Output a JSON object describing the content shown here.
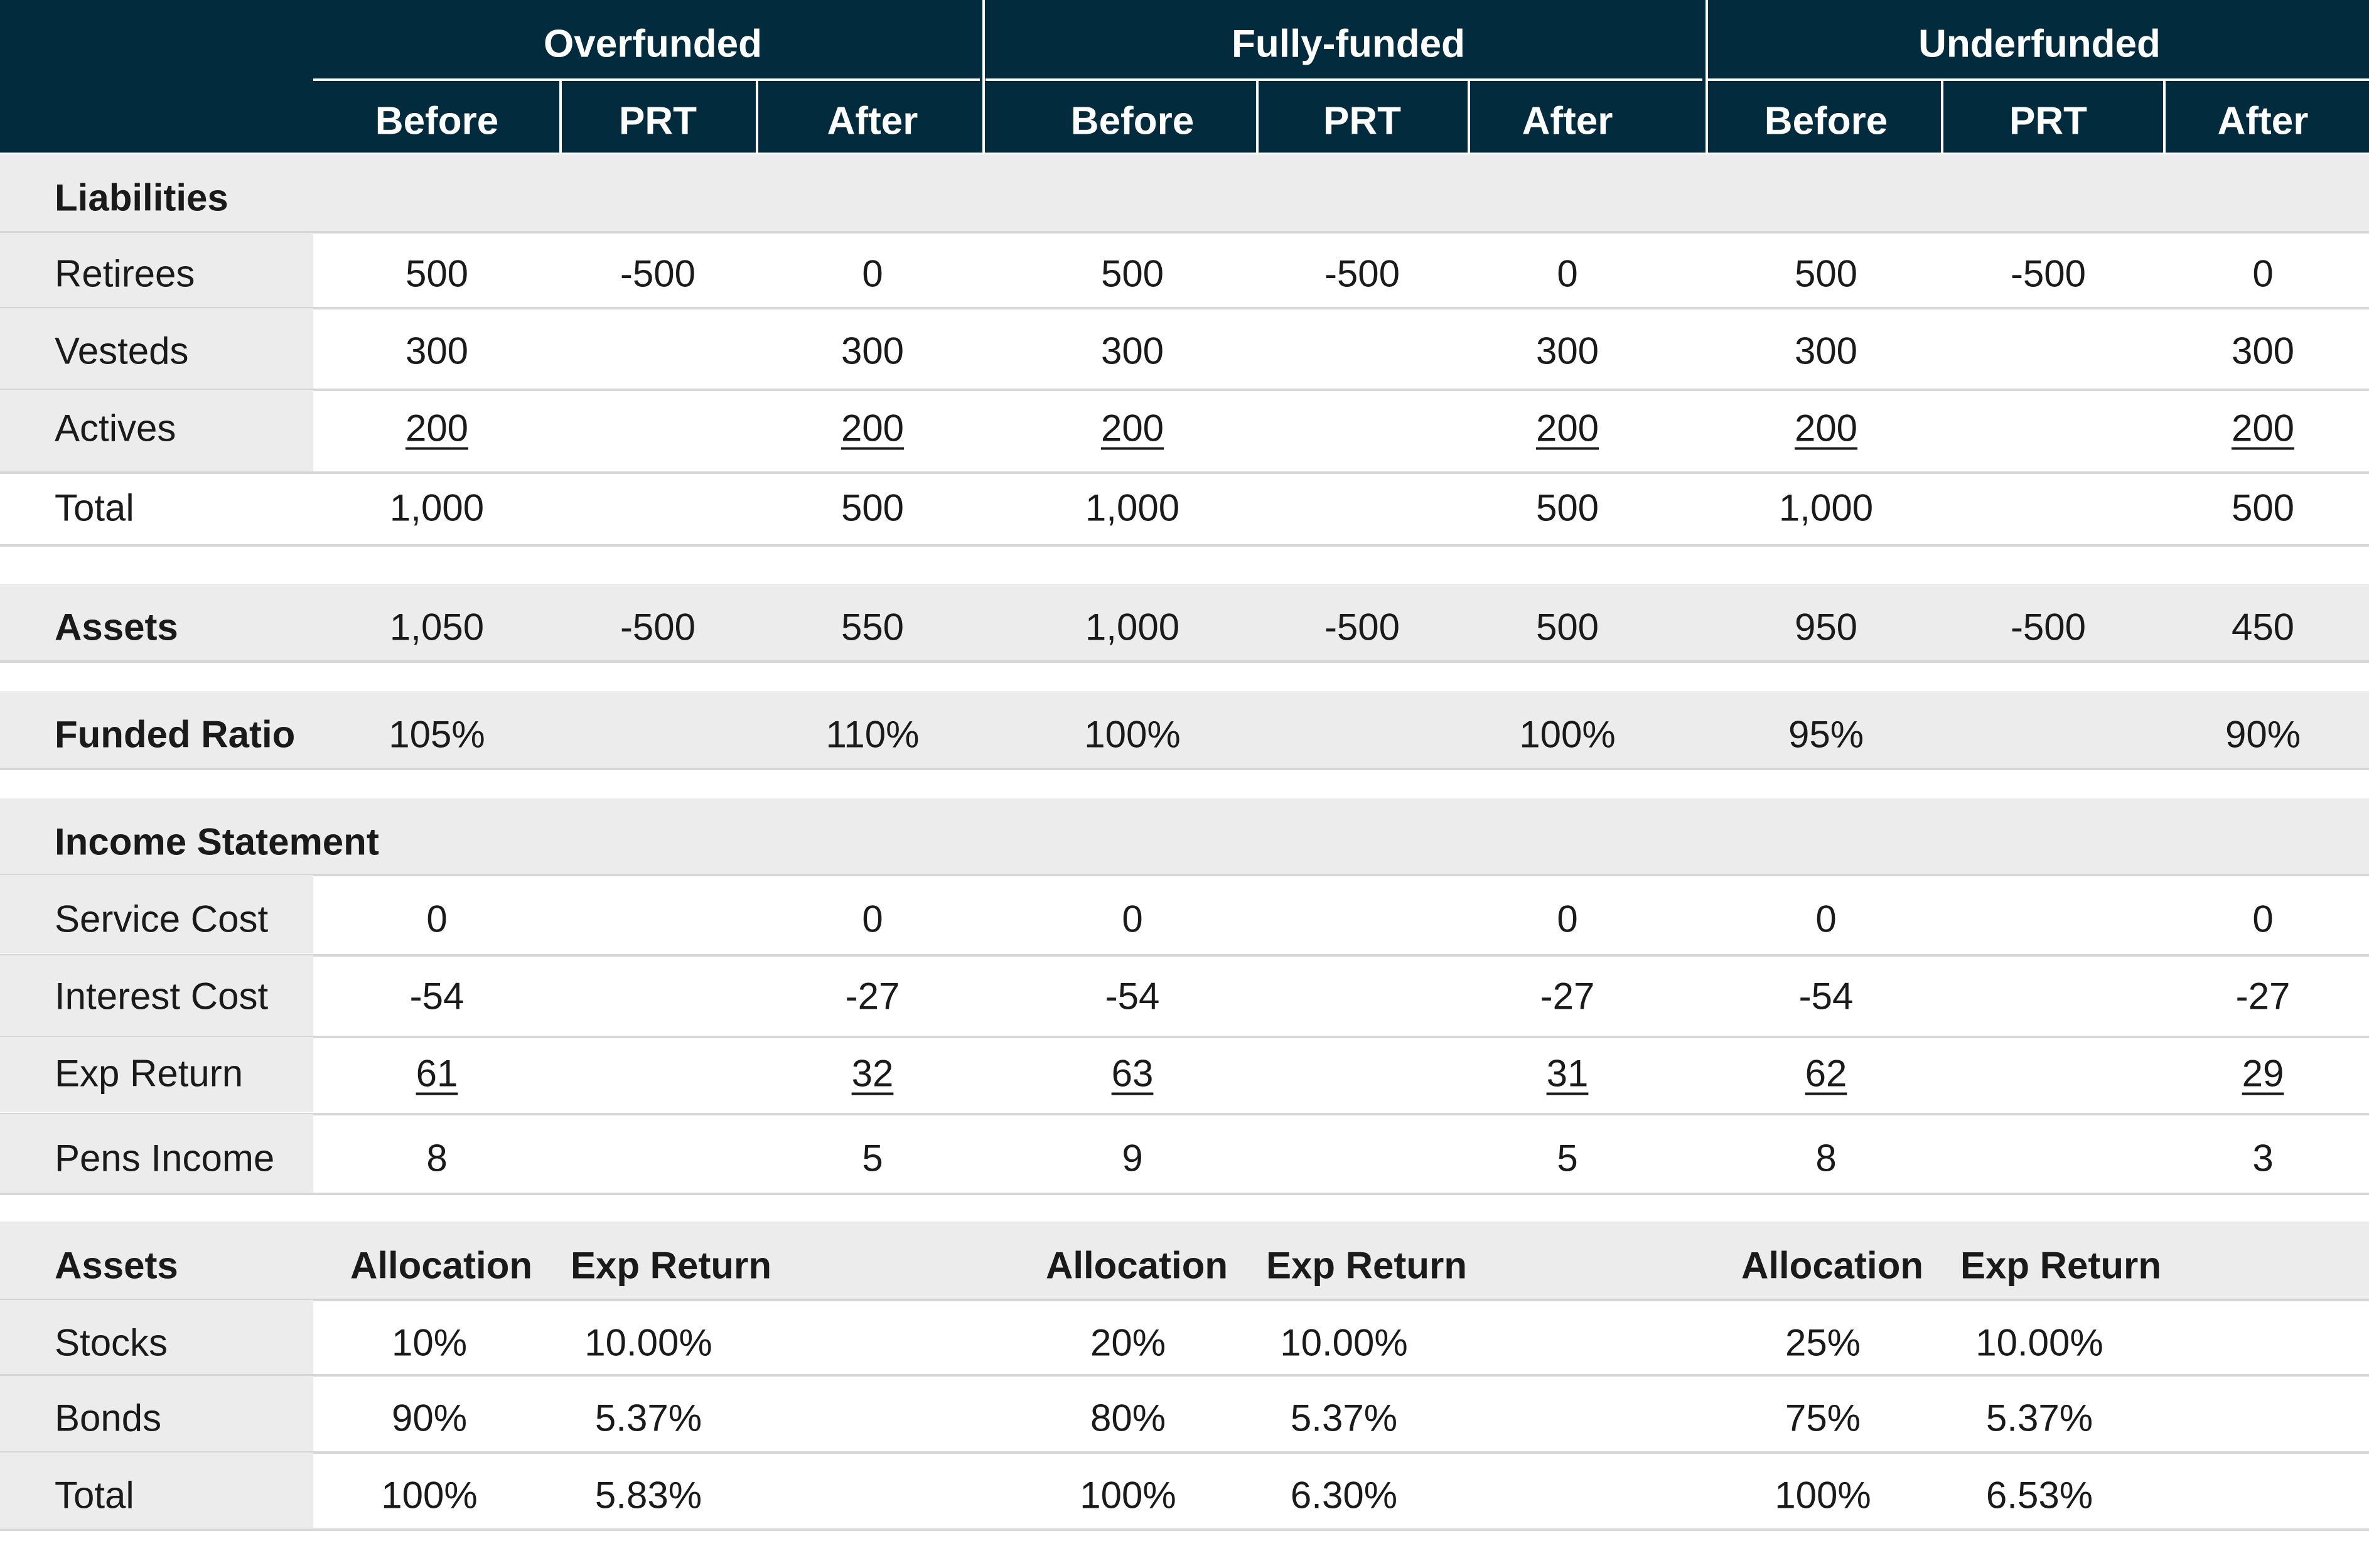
{
  "groups": [
    {
      "name": "Overfunded",
      "cols": [
        "Before",
        "PRT",
        "After"
      ]
    },
    {
      "name": "Fully-funded",
      "cols": [
        "Before",
        "PRT",
        "After"
      ]
    },
    {
      "name": "Underfunded",
      "cols": [
        "Before",
        "PRT",
        "After"
      ]
    }
  ],
  "liabilities": {
    "title": "Liabilities",
    "rows": [
      {
        "label": "Retirees",
        "values": [
          "500",
          "-500",
          "0",
          "500",
          "-500",
          "0",
          "500",
          "-500",
          "0"
        ]
      },
      {
        "label": "Vesteds",
        "values": [
          "300",
          "",
          "300",
          "300",
          "",
          "300",
          "300",
          "",
          "300"
        ]
      },
      {
        "label": "Actives",
        "values": [
          "200",
          "",
          "200",
          "200",
          "",
          "200",
          "200",
          "",
          "200"
        ]
      },
      {
        "label": "Total",
        "values": [
          "1,000",
          "",
          "500",
          "1,000",
          "",
          "500",
          "1,000",
          "",
          "500"
        ]
      }
    ]
  },
  "assets_row": {
    "label": "Assets",
    "values": [
      "1,050",
      "-500",
      "550",
      "1,000",
      "-500",
      "500",
      "950",
      "-500",
      "450"
    ]
  },
  "funded_ratio": {
    "label": "Funded Ratio",
    "values": [
      "105%",
      "",
      "110%",
      "100%",
      "",
      "100%",
      "95%",
      "",
      "90%"
    ]
  },
  "income": {
    "title": "Income Statement",
    "rows": [
      {
        "label": "Service Cost",
        "values": [
          "0",
          "",
          "0",
          "0",
          "",
          "0",
          "0",
          "",
          "0"
        ]
      },
      {
        "label": "Interest Cost",
        "values": [
          "-54",
          "",
          "-27",
          "-54",
          "",
          "-27",
          "-54",
          "",
          "-27"
        ]
      },
      {
        "label": "Exp Return",
        "values": [
          "61",
          "",
          "32",
          "63",
          "",
          "31",
          "62",
          "",
          "29"
        ]
      },
      {
        "label": "Pens Income",
        "values": [
          "8",
          "",
          "5",
          "9",
          "",
          "5",
          "8",
          "",
          "3"
        ]
      }
    ]
  },
  "allocation": {
    "title": "Assets",
    "headers": [
      "Allocation",
      "Exp Return",
      "Allocation",
      "Exp Return",
      "Allocation",
      "Exp Return"
    ],
    "rows": [
      {
        "label": "Stocks",
        "values": [
          "10%",
          "10.00%",
          "20%",
          "10.00%",
          "25%",
          "10.00%"
        ]
      },
      {
        "label": "Bonds",
        "values": [
          "90%",
          "5.37%",
          "80%",
          "5.37%",
          "75%",
          "5.37%"
        ]
      },
      {
        "label": "Total",
        "values": [
          "100%",
          "5.83%",
          "100%",
          "6.30%",
          "100%",
          "6.53%"
        ]
      }
    ]
  },
  "colors": {
    "header_bg": "#022b3d",
    "header_text": "#ffffff",
    "band_grey": "#ececec",
    "rule": "#d6d6d6"
  }
}
